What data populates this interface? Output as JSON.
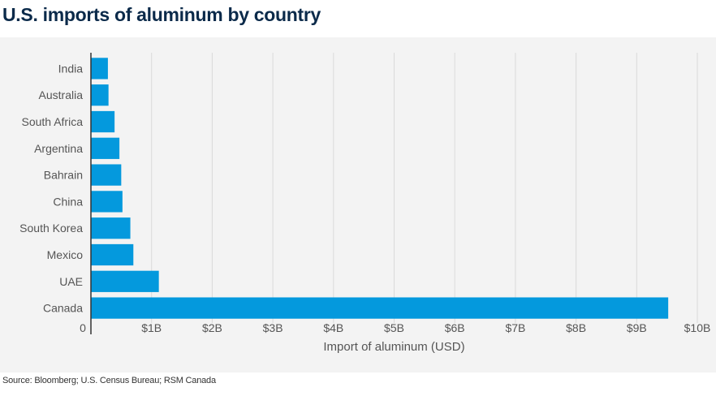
{
  "header": {
    "title": "U.S. imports of aluminum by country"
  },
  "footer": {
    "source": "Source: Bloomberg; U.S. Census Bureau; RSM Canada"
  },
  "colors": {
    "bar": "#0499dd",
    "grid": "#dadada",
    "axis": "#333333",
    "text": "#555555",
    "panel": "#f3f3f3"
  },
  "chart_data": {
    "type": "bar",
    "orientation": "horizontal",
    "categories": [
      "India",
      "Australia",
      "South Africa",
      "Argentina",
      "Bahrain",
      "China",
      "South Korea",
      "Mexico",
      "UAE",
      "Canada"
    ],
    "values": [
      0.28,
      0.29,
      0.39,
      0.47,
      0.5,
      0.52,
      0.65,
      0.7,
      1.12,
      9.52
    ],
    "xlabel": "Import of aluminum (USD)",
    "ylabel": "",
    "xlim": [
      0,
      10
    ],
    "xticks": [
      0,
      1,
      2,
      3,
      4,
      5,
      6,
      7,
      8,
      9,
      10
    ],
    "xtick_labels": [
      "0",
      "$1B",
      "$2B",
      "$3B",
      "$4B",
      "$5B",
      "$6B",
      "$7B",
      "$8B",
      "$9B",
      "$10B"
    ],
    "grid": true,
    "legend": "none"
  }
}
